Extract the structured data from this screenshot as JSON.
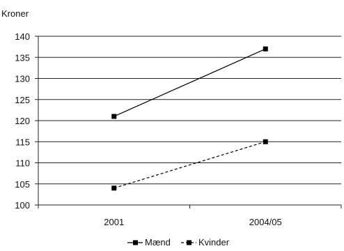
{
  "chart_data": {
    "type": "line",
    "title": "",
    "ylabel": "Kroner",
    "xlabel": "",
    "categories": [
      "2001",
      "2004/05"
    ],
    "ylim": [
      100,
      140
    ],
    "yticks": [
      100,
      105,
      110,
      115,
      120,
      125,
      130,
      135,
      140
    ],
    "grid": true,
    "legend_position": "bottom",
    "series": [
      {
        "name": "Mænd",
        "values": [
          121,
          137
        ],
        "line_style": "solid",
        "marker": "square",
        "color": "#000000"
      },
      {
        "name": "Kvinder",
        "values": [
          104,
          115
        ],
        "line_style": "dashed",
        "marker": "square",
        "color": "#000000"
      }
    ]
  }
}
